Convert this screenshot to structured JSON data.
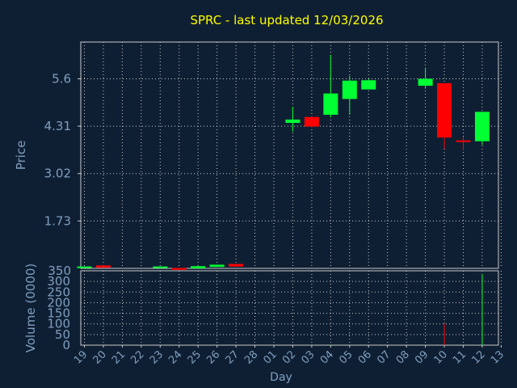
{
  "chart_data": {
    "type": "candlestick",
    "title": "SPRC - last updated 12/03/2026",
    "price_panel": {
      "ylabel": "Price",
      "ylim": [
        0.44,
        6.6
      ],
      "yticks": [
        "5.6",
        "4.31",
        "3.02",
        "1.73"
      ]
    },
    "volume_panel": {
      "ylabel": "Volume (0000)",
      "ylim": [
        0,
        350
      ],
      "yticks": [
        "350",
        "300",
        "250",
        "200",
        "150",
        "100",
        "50",
        "0"
      ]
    },
    "xlabel": "Day",
    "categories": [
      "19",
      "20",
      "21",
      "22",
      "23",
      "24",
      "25",
      "26",
      "27",
      "28",
      "01",
      "02",
      "03",
      "04",
      "05",
      "06",
      "07",
      "08",
      "09",
      "10",
      "11",
      "12",
      "13"
    ],
    "colors": {
      "up": "#00ff33",
      "down": "#ff0000",
      "background": "#0f1f33",
      "text": "#7f9fbf",
      "title": "#ffff00",
      "grid": "#c8c8c8"
    },
    "candles": [
      {
        "x": 0,
        "open": 0.44,
        "high": 0.47,
        "low": 0.44,
        "close": 0.47
      },
      {
        "x": 1,
        "open": 0.52,
        "high": 0.52,
        "low": 0.46,
        "close": 0.46
      },
      {
        "x": 4,
        "open": 0.44,
        "high": 0.47,
        "low": 0.44,
        "close": 0.47
      },
      {
        "x": 5,
        "open": 0.45,
        "high": 0.45,
        "low": 0.4,
        "close": 0.4
      },
      {
        "x": 6,
        "open": 0.44,
        "high": 0.5,
        "low": 0.44,
        "close": 0.5
      },
      {
        "x": 7,
        "open": 0.48,
        "high": 0.54,
        "low": 0.48,
        "close": 0.54
      },
      {
        "x": 8,
        "open": 0.56,
        "high": 0.56,
        "low": 0.49,
        "close": 0.49
      },
      {
        "x": 11,
        "open": 4.4,
        "high": 4.84,
        "low": 4.16,
        "close": 4.49
      },
      {
        "x": 12,
        "open": 4.56,
        "high": 4.58,
        "low": 4.28,
        "close": 4.3
      },
      {
        "x": 13,
        "open": 4.62,
        "high": 6.25,
        "low": 4.55,
        "close": 5.2
      },
      {
        "x": 14,
        "open": 5.05,
        "high": 5.68,
        "low": 4.62,
        "close": 5.55
      },
      {
        "x": 15,
        "open": 5.31,
        "high": 5.6,
        "low": 5.31,
        "close": 5.56
      },
      {
        "x": 18,
        "open": 5.41,
        "high": 5.9,
        "low": 5.33,
        "close": 5.6
      },
      {
        "x": 19,
        "open": 5.48,
        "high": 5.48,
        "low": 3.7,
        "close": 4.0
      },
      {
        "x": 20,
        "open": 3.9,
        "high": 4.02,
        "low": 3.65,
        "close": 3.87
      },
      {
        "x": 21,
        "open": 3.9,
        "high": 4.7,
        "low": 3.8,
        "close": 4.7
      }
    ],
    "volumes": [
      {
        "x": 13,
        "value": 2,
        "dir": "up"
      },
      {
        "x": 19,
        "value": 100,
        "dir": "down"
      },
      {
        "x": 21,
        "value": 335,
        "dir": "up"
      }
    ],
    "grid": true
  }
}
